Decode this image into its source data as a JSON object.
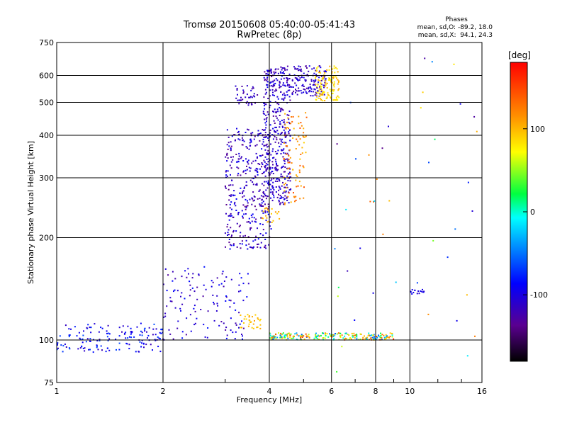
{
  "chart_data": {
    "type": "scatter",
    "title": "Tromsø 20150608 05:40:00-05:41:43",
    "subtitle": "RwPretec (8p)",
    "xlabel": "Frequency [MHz]",
    "ylabel": "Stationary phase Virtual Height [km]",
    "xscale": "log",
    "yscale": "log",
    "xlim": [
      1,
      16
    ],
    "ylim": [
      75,
      750
    ],
    "x_ticks": [
      1,
      2,
      4,
      6,
      8,
      10,
      16
    ],
    "y_ticks": [
      75,
      100,
      200,
      300,
      400,
      500,
      600,
      750
    ],
    "grid": true,
    "phase_stats": {
      "heading": "Phases",
      "line_o": "mean, sd,O: -89.2, 18.0",
      "line_x": "mean, sd,X:  94.1, 24.3"
    },
    "colorbar": {
      "label": "[deg]",
      "range": [
        -180,
        180
      ],
      "ticks": [
        100,
        0,
        -100
      ],
      "colormap": "rainbow"
    },
    "point_groups": [
      {
        "x_range": [
          1.0,
          2.0
        ],
        "y_range": [
          92,
          112
        ],
        "phase_range": [
          -120,
          -60
        ],
        "count": 150
      },
      {
        "x_range": [
          2.0,
          3.5
        ],
        "y_range": [
          100,
          165
        ],
        "phase_range": [
          -130,
          -80
        ],
        "count": 130
      },
      {
        "x_range": [
          3.0,
          4.05
        ],
        "y_range": [
          185,
          420
        ],
        "phase_range": [
          -140,
          -85
        ],
        "count": 380
      },
      {
        "x_range": [
          3.2,
          3.7
        ],
        "y_range": [
          490,
          560
        ],
        "phase_range": [
          -130,
          -100
        ],
        "count": 40
      },
      {
        "x_range": [
          3.85,
          4.6
        ],
        "y_range": [
          250,
          640
        ],
        "phase_range": [
          -135,
          -90
        ],
        "count": 420
      },
      {
        "x_range": [
          4.6,
          5.8
        ],
        "y_range": [
          520,
          640
        ],
        "phase_range": [
          -130,
          -95
        ],
        "count": 140
      },
      {
        "x_range": [
          5.4,
          6.3
        ],
        "y_range": [
          505,
          640
        ],
        "phase_range": [
          70,
          110
        ],
        "count": 120
      },
      {
        "x_range": [
          4.4,
          5.1
        ],
        "y_range": [
          250,
          470
        ],
        "phase_range": [
          90,
          150
        ],
        "count": 90
      },
      {
        "x_range": [
          3.8,
          4.3
        ],
        "y_range": [
          220,
          245
        ],
        "phase_range": [
          90,
          115
        ],
        "count": 20
      },
      {
        "x_range": [
          3.3,
          3.8
        ],
        "y_range": [
          108,
          120
        ],
        "phase_range": [
          80,
          110
        ],
        "count": 30
      },
      {
        "x_range": [
          4.0,
          9.0
        ],
        "y_range": [
          100,
          105
        ],
        "phase_range": [
          -60,
          150
        ],
        "count": 220
      },
      {
        "x_range": [
          10.0,
          11.0
        ],
        "y_range": [
          136,
          141
        ],
        "phase_range": [
          -110,
          -90
        ],
        "count": 15
      },
      {
        "x_range": [
          6.0,
          15.5
        ],
        "y_range": [
          80,
          680
        ],
        "phase_range": [
          -140,
          140
        ],
        "count": 45
      }
    ]
  }
}
